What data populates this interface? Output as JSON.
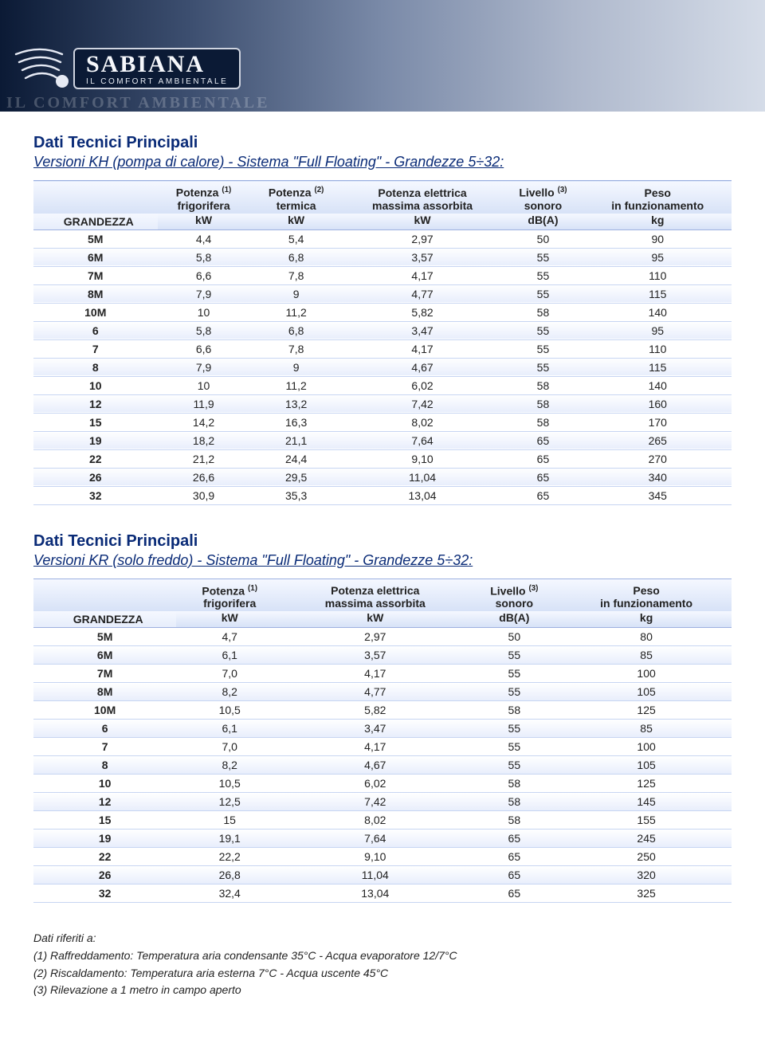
{
  "brand": {
    "name": "SABIANA",
    "tagline": "IL COMFORT AMBIENTALE",
    "watermark": "IL COMFORT AMBIENTALE"
  },
  "banner_colors": {
    "gradient_from": "#0b1a35",
    "gradient_to": "#d5dce8",
    "row_border": "#c7d5f2",
    "alt_row_to": "#e8eefc",
    "accent_text": "#0a2b77"
  },
  "section1": {
    "title": "Dati Tecnici Principali",
    "subtitle": "Versioni KH (pompa di calore) - Sistema \"Full Floating\" - Grandezze 5÷32:",
    "row_label": "GRANDEZZA",
    "columns": [
      {
        "label": "Potenza (1)",
        "sub": "frigorifera",
        "unit": "kW"
      },
      {
        "label": "Potenza (2)",
        "sub": "termica",
        "unit": "kW"
      },
      {
        "label": "Potenza elettrica",
        "sub": "massima assorbita",
        "unit": "kW"
      },
      {
        "label": "Livello (3)",
        "sub": "sonoro",
        "unit": "dB(A)"
      },
      {
        "label": "Peso",
        "sub": "in funzionamento",
        "unit": "kg"
      }
    ],
    "rows": [
      {
        "size": "5M",
        "v": [
          "4,4",
          "5,4",
          "2,97",
          "50",
          "90"
        ]
      },
      {
        "size": "6M",
        "v": [
          "5,8",
          "6,8",
          "3,57",
          "55",
          "95"
        ]
      },
      {
        "size": "7M",
        "v": [
          "6,6",
          "7,8",
          "4,17",
          "55",
          "110"
        ]
      },
      {
        "size": "8M",
        "v": [
          "7,9",
          "9",
          "4,77",
          "55",
          "115"
        ]
      },
      {
        "size": "10M",
        "v": [
          "10",
          "11,2",
          "5,82",
          "58",
          "140"
        ]
      },
      {
        "size": "6",
        "v": [
          "5,8",
          "6,8",
          "3,47",
          "55",
          "95"
        ]
      },
      {
        "size": "7",
        "v": [
          "6,6",
          "7,8",
          "4,17",
          "55",
          "110"
        ]
      },
      {
        "size": "8",
        "v": [
          "7,9",
          "9",
          "4,67",
          "55",
          "115"
        ]
      },
      {
        "size": "10",
        "v": [
          "10",
          "11,2",
          "6,02",
          "58",
          "140"
        ]
      },
      {
        "size": "12",
        "v": [
          "11,9",
          "13,2",
          "7,42",
          "58",
          "160"
        ]
      },
      {
        "size": "15",
        "v": [
          "14,2",
          "16,3",
          "8,02",
          "58",
          "170"
        ]
      },
      {
        "size": "19",
        "v": [
          "18,2",
          "21,1",
          "7,64",
          "65",
          "265"
        ]
      },
      {
        "size": "22",
        "v": [
          "21,2",
          "24,4",
          "9,10",
          "65",
          "270"
        ]
      },
      {
        "size": "26",
        "v": [
          "26,6",
          "29,5",
          "11,04",
          "65",
          "340"
        ]
      },
      {
        "size": "32",
        "v": [
          "30,9",
          "35,3",
          "13,04",
          "65",
          "345"
        ]
      }
    ]
  },
  "section2": {
    "title": "Dati Tecnici Principali",
    "subtitle": "Versioni KR (solo freddo) - Sistema \"Full Floating\" - Grandezze 5÷32:",
    "row_label": "GRANDEZZA",
    "columns": [
      {
        "label": "Potenza (1)",
        "sub": "frigorifera",
        "unit": "kW"
      },
      {
        "label": "Potenza elettrica",
        "sub": "massima assorbita",
        "unit": "kW"
      },
      {
        "label": "Livello (3)",
        "sub": "sonoro",
        "unit": "dB(A)"
      },
      {
        "label": "Peso",
        "sub": "in funzionamento",
        "unit": "kg"
      }
    ],
    "rows": [
      {
        "size": "5M",
        "v": [
          "4,7",
          "2,97",
          "50",
          "80"
        ]
      },
      {
        "size": "6M",
        "v": [
          "6,1",
          "3,57",
          "55",
          "85"
        ]
      },
      {
        "size": "7M",
        "v": [
          "7,0",
          "4,17",
          "55",
          "100"
        ]
      },
      {
        "size": "8M",
        "v": [
          "8,2",
          "4,77",
          "55",
          "105"
        ]
      },
      {
        "size": "10M",
        "v": [
          "10,5",
          "5,82",
          "58",
          "125"
        ]
      },
      {
        "size": "6",
        "v": [
          "6,1",
          "3,47",
          "55",
          "85"
        ]
      },
      {
        "size": "7",
        "v": [
          "7,0",
          "4,17",
          "55",
          "100"
        ]
      },
      {
        "size": "8",
        "v": [
          "8,2",
          "4,67",
          "55",
          "105"
        ]
      },
      {
        "size": "10",
        "v": [
          "10,5",
          "6,02",
          "58",
          "125"
        ]
      },
      {
        "size": "12",
        "v": [
          "12,5",
          "7,42",
          "58",
          "145"
        ]
      },
      {
        "size": "15",
        "v": [
          "15",
          "8,02",
          "58",
          "155"
        ]
      },
      {
        "size": "19",
        "v": [
          "19,1",
          "7,64",
          "65",
          "245"
        ]
      },
      {
        "size": "22",
        "v": [
          "22,2",
          "9,10",
          "65",
          "250"
        ]
      },
      {
        "size": "26",
        "v": [
          "26,8",
          "11,04",
          "65",
          "320"
        ]
      },
      {
        "size": "32",
        "v": [
          "32,4",
          "13,04",
          "65",
          "325"
        ]
      }
    ]
  },
  "footnotes": {
    "intro": "Dati riferiti a:",
    "items": [
      "(1) Raffreddamento: Temperatura aria condensante 35°C - Acqua evaporatore 12/7°C",
      "(2) Riscaldamento:  Temperatura aria esterna 7°C - Acqua uscente 45°C",
      "(3) Rilevazione a 1 metro in campo aperto"
    ]
  }
}
